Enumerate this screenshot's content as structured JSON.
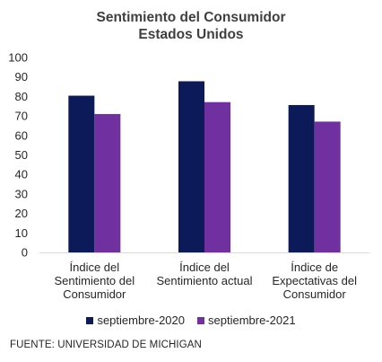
{
  "chart_data": {
    "type": "bar",
    "title": [
      "Sentimiento del Consumidor",
      "Estados Unidos"
    ],
    "categories": [
      [
        "Índice del",
        "Sentimiento del",
        "Consumidor"
      ],
      [
        "Índice del",
        "Sentimiento actual"
      ],
      [
        "Índice de",
        "Expectativas del",
        "Consumidor"
      ]
    ],
    "series": [
      {
        "name": "septiembre-2020",
        "color": "#0c1a5a",
        "values": [
          80.4,
          87.8,
          75.6
        ]
      },
      {
        "name": "septiembre-2021",
        "color": "#7030a0",
        "values": [
          71.0,
          77.1,
          67.1
        ]
      }
    ],
    "ylim": [
      0,
      100
    ],
    "yticks": [
      0,
      10,
      20,
      30,
      40,
      50,
      60,
      70,
      80,
      90,
      100
    ],
    "grid": false,
    "legend_position": "bottom",
    "xlabel": "",
    "ylabel": ""
  },
  "source": "FUENTE: UNIVERSIDAD DE MICHIGAN"
}
